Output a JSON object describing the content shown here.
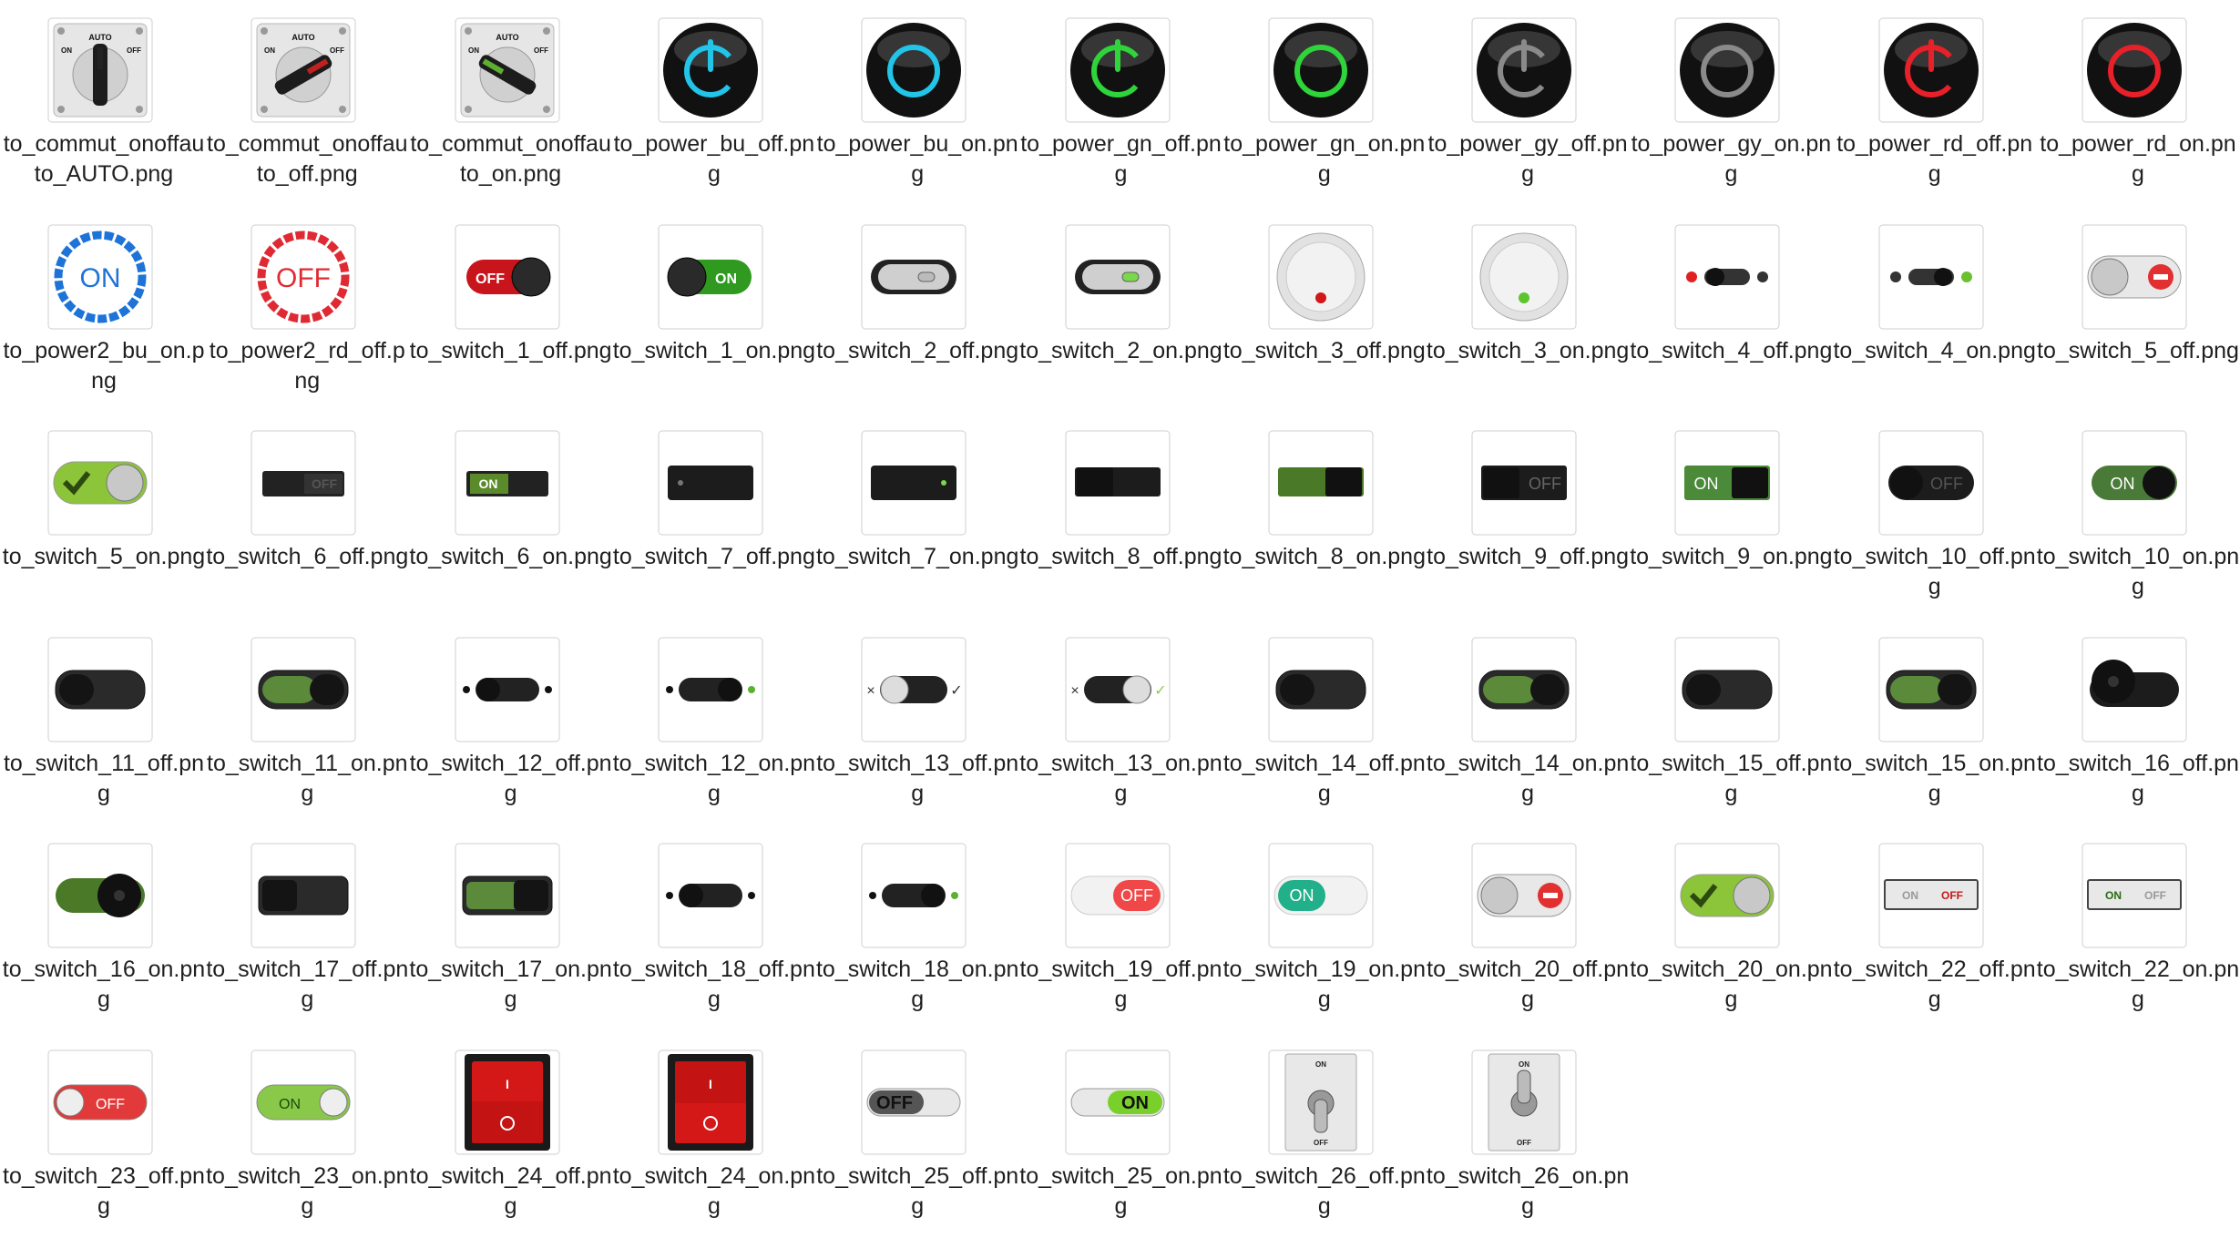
{
  "files": [
    {
      "name": "to_commut_onoffauto_AUTO.png",
      "icon": "commut-auto-icon",
      "kind": "commut",
      "state": "auto"
    },
    {
      "name": "to_commut_onoffauto_off.png",
      "icon": "commut-off-icon",
      "kind": "commut",
      "state": "off"
    },
    {
      "name": "to_commut_onoffauto_on.png",
      "icon": "commut-on-icon",
      "kind": "commut",
      "state": "on"
    },
    {
      "name": "to_power_bu_off.png",
      "icon": "power-blue-off-icon",
      "kind": "power",
      "color": "#22c4e8",
      "state": "off"
    },
    {
      "name": "to_power_bu_on.png",
      "icon": "power-blue-on-icon",
      "kind": "power",
      "color": "#22c4e8",
      "state": "on"
    },
    {
      "name": "to_power_gn_off.png",
      "icon": "power-green-off-icon",
      "kind": "power",
      "color": "#2fd43a",
      "state": "off"
    },
    {
      "name": "to_power_gn_on.png",
      "icon": "power-green-on-icon",
      "kind": "power",
      "color": "#2fd43a",
      "state": "on"
    },
    {
      "name": "to_power_gy_off.png",
      "icon": "power-gray-off-icon",
      "kind": "power",
      "color": "#8a8a8a",
      "state": "off"
    },
    {
      "name": "to_power_gy_on.png",
      "icon": "power-gray-on-icon",
      "kind": "power",
      "color": "#8a8a8a",
      "state": "on"
    },
    {
      "name": "to_power_rd_off.png",
      "icon": "power-red-off-icon",
      "kind": "power",
      "color": "#e8202a",
      "state": "off"
    },
    {
      "name": "to_power_rd_on.png",
      "icon": "power-red-on-icon",
      "kind": "power",
      "color": "#e8202a",
      "state": "on"
    },
    {
      "name": "to_power2_bu_on.png",
      "icon": "power2-blue-on-icon",
      "kind": "ring",
      "color": "#1e73d8",
      "text": "ON"
    },
    {
      "name": "to_power2_rd_off.png",
      "icon": "power2-red-off-icon",
      "kind": "ring",
      "color": "#e02a33",
      "text": "OFF"
    },
    {
      "name": "to_switch_1_off.png",
      "icon": "switch-1-off-icon",
      "kind": "pill",
      "on": false,
      "track": "#c8151c",
      "knob": "#2a2a2a",
      "text": "OFF"
    },
    {
      "name": "to_switch_1_on.png",
      "icon": "switch-1-on-icon",
      "kind": "pill",
      "on": true,
      "track": "#2f9a1f",
      "knob": "#2a2a2a",
      "text": "ON"
    },
    {
      "name": "to_switch_2_off.png",
      "icon": "switch-2-off-icon",
      "kind": "capsule",
      "on": false
    },
    {
      "name": "to_switch_2_on.png",
      "icon": "switch-2-on-icon",
      "kind": "capsule",
      "on": true
    },
    {
      "name": "to_switch_3_off.png",
      "icon": "switch-3-off-icon",
      "kind": "dial",
      "dot": "#d01818"
    },
    {
      "name": "to_switch_3_on.png",
      "icon": "switch-3-on-icon",
      "kind": "dial",
      "dot": "#5cc42c"
    },
    {
      "name": "to_switch_4_off.png",
      "icon": "switch-4-off-icon",
      "kind": "slim",
      "on": false
    },
    {
      "name": "to_switch_4_on.png",
      "icon": "switch-4-on-icon",
      "kind": "slim",
      "on": true
    },
    {
      "name": "to_switch_5_off.png",
      "icon": "switch-5-off-icon",
      "kind": "metal",
      "on": false
    },
    {
      "name": "to_switch_5_on.png",
      "icon": "switch-5-on-icon",
      "kind": "metal",
      "on": true
    },
    {
      "name": "to_switch_6_off.png",
      "icon": "switch-6-off-icon",
      "kind": "rect",
      "on": false,
      "text": "OFF"
    },
    {
      "name": "to_switch_6_on.png",
      "icon": "switch-6-on-icon",
      "kind": "rect",
      "on": true,
      "text": "ON"
    },
    {
      "name": "to_switch_7_off.png",
      "icon": "switch-7-off-icon",
      "kind": "block",
      "on": false
    },
    {
      "name": "to_switch_7_on.png",
      "icon": "switch-7-on-icon",
      "kind": "block",
      "on": true
    },
    {
      "name": "to_switch_8_off.png",
      "icon": "switch-8-off-icon",
      "kind": "flat",
      "on": false
    },
    {
      "name": "to_switch_8_on.png",
      "icon": "switch-8-on-icon",
      "kind": "flat",
      "on": true
    },
    {
      "name": "to_switch_9_off.png",
      "icon": "switch-9-off-icon",
      "kind": "labelrect",
      "on": false,
      "text": "OFF"
    },
    {
      "name": "to_switch_9_on.png",
      "icon": "switch-9-on-icon",
      "kind": "labelrect",
      "on": true,
      "text": "ON"
    },
    {
      "name": "to_switch_10_off.png",
      "icon": "switch-10-off-icon",
      "kind": "labelpill",
      "on": false,
      "text": "OFF"
    },
    {
      "name": "to_switch_10_on.png",
      "icon": "switch-10-on-icon",
      "kind": "labelpill",
      "on": true,
      "text": "ON"
    },
    {
      "name": "to_switch_11_off.png",
      "icon": "switch-11-off-icon",
      "kind": "darkpill",
      "on": false
    },
    {
      "name": "to_switch_11_on.png",
      "icon": "switch-11-on-icon",
      "kind": "darkpill",
      "on": true
    },
    {
      "name": "to_switch_12_off.png",
      "icon": "switch-12-off-icon",
      "kind": "dotpill",
      "on": false
    },
    {
      "name": "to_switch_12_on.png",
      "icon": "switch-12-on-icon",
      "kind": "dotpill",
      "on": true
    },
    {
      "name": "to_switch_13_off.png",
      "icon": "switch-13-off-icon",
      "kind": "xcheck",
      "on": false
    },
    {
      "name": "to_switch_13_on.png",
      "icon": "switch-13-on-icon",
      "kind": "xcheck",
      "on": true
    },
    {
      "name": "to_switch_14_off.png",
      "icon": "switch-14-off-icon",
      "kind": "bigpill",
      "on": false
    },
    {
      "name": "to_switch_14_on.png",
      "icon": "switch-14-on-icon",
      "kind": "bigpill",
      "on": true
    },
    {
      "name": "to_switch_15_off.png",
      "icon": "switch-15-off-icon",
      "kind": "bigpill",
      "on": false
    },
    {
      "name": "to_switch_15_on.png",
      "icon": "switch-15-on-icon",
      "kind": "bigpill",
      "on": true
    },
    {
      "name": "to_switch_16_off.png",
      "icon": "switch-16-off-icon",
      "kind": "knobpill",
      "on": false
    },
    {
      "name": "to_switch_16_on.png",
      "icon": "switch-16-on-icon",
      "kind": "knobpill",
      "on": true
    },
    {
      "name": "to_switch_17_off.png",
      "icon": "switch-17-off-icon",
      "kind": "sqpill",
      "on": false
    },
    {
      "name": "to_switch_17_on.png",
      "icon": "switch-17-on-icon",
      "kind": "sqpill",
      "on": true
    },
    {
      "name": "to_switch_18_off.png",
      "icon": "switch-18-off-icon",
      "kind": "dotpill",
      "on": false
    },
    {
      "name": "to_switch_18_on.png",
      "icon": "switch-18-on-icon",
      "kind": "dotpill",
      "on": true
    },
    {
      "name": "to_switch_19_off.png",
      "icon": "switch-19-off-icon",
      "kind": "lightpill",
      "on": false,
      "color": "#f04848",
      "text": "OFF"
    },
    {
      "name": "to_switch_19_on.png",
      "icon": "switch-19-on-icon",
      "kind": "lightpill",
      "on": true,
      "color": "#22b08a",
      "text": "ON"
    },
    {
      "name": "to_switch_20_off.png",
      "icon": "switch-20-off-icon",
      "kind": "metal",
      "on": false
    },
    {
      "name": "to_switch_20_on.png",
      "icon": "switch-20-on-icon",
      "kind": "metal",
      "on": true
    },
    {
      "name": "to_switch_22_off.png",
      "icon": "switch-22-off-icon",
      "kind": "twolabel",
      "on": false,
      "left": "ON",
      "right": "OFF"
    },
    {
      "name": "to_switch_22_on.png",
      "icon": "switch-22-on-icon",
      "kind": "twolabel",
      "on": true,
      "left": "ON",
      "right": "OFF"
    },
    {
      "name": "to_switch_23_off.png",
      "icon": "switch-23-off-icon",
      "kind": "roundbtn",
      "on": false,
      "text": "OFF"
    },
    {
      "name": "to_switch_23_on.png",
      "icon": "switch-23-on-icon",
      "kind": "roundbtn",
      "on": true,
      "text": "ON"
    },
    {
      "name": "to_switch_24_off.png",
      "icon": "switch-24-off-icon",
      "kind": "rocker",
      "on": false
    },
    {
      "name": "to_switch_24_on.png",
      "icon": "switch-24-on-icon",
      "kind": "rocker",
      "on": true
    },
    {
      "name": "to_switch_25_off.png",
      "icon": "switch-25-off-icon",
      "kind": "slider",
      "on": false,
      "text": "OFF"
    },
    {
      "name": "to_switch_25_on.png",
      "icon": "switch-25-on-icon",
      "kind": "slider",
      "on": true,
      "text": "ON"
    },
    {
      "name": "to_switch_26_off.png",
      "icon": "switch-26-off-icon",
      "kind": "toggle",
      "on": false,
      "top": "ON",
      "bottom": "OFF"
    },
    {
      "name": "to_switch_26_on.png",
      "icon": "switch-26-on-icon",
      "kind": "toggle",
      "on": true,
      "top": "ON",
      "bottom": "OFF"
    }
  ]
}
